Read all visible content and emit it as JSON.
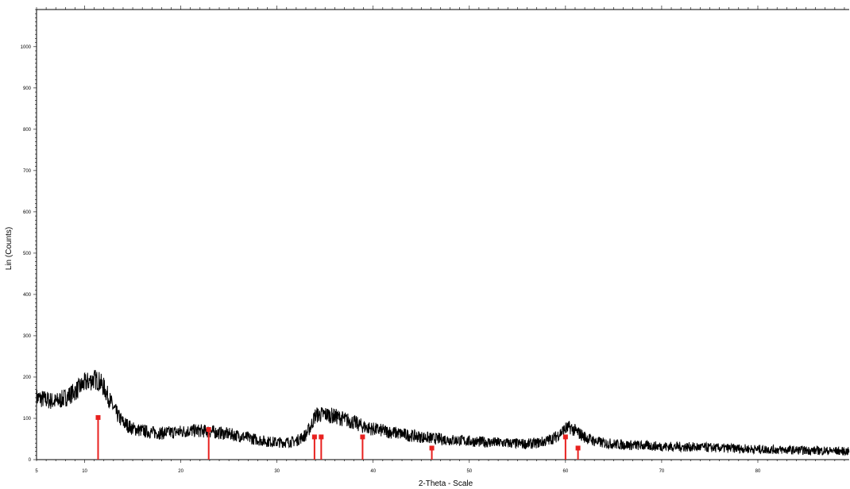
{
  "chart_data": {
    "type": "line",
    "title": "",
    "xlabel": "2-Theta - Scale",
    "ylabel": "Lin (Counts)",
    "xlim": [
      5,
      89.5
    ],
    "ylim": [
      0,
      1090
    ],
    "x_ticks": [
      5,
      10,
      20,
      30,
      40,
      50,
      60,
      70,
      80
    ],
    "y_ticks": [
      0,
      100,
      200,
      300,
      400,
      500,
      600,
      700,
      800,
      900,
      1000
    ],
    "grid": false,
    "legend": "none",
    "colors": {
      "pattern": "#000000",
      "reference": "#e8211f"
    },
    "series": [
      {
        "x": [
          5,
          6,
          7,
          8,
          9,
          10,
          10.5,
          11,
          11.5,
          12,
          12.5,
          13,
          13.5,
          14,
          15,
          16,
          17,
          18,
          19,
          20,
          21,
          22,
          23,
          24,
          25,
          26,
          27,
          28,
          29,
          30,
          31,
          32,
          33,
          33.5,
          34,
          35,
          36,
          37,
          38,
          39,
          40,
          42,
          44,
          46,
          48,
          50,
          52,
          54,
          56,
          57,
          58,
          59,
          59.5,
          60,
          60.5,
          61,
          62,
          63,
          64,
          66,
          68,
          70,
          72,
          74,
          76,
          78,
          80,
          82,
          84,
          86,
          88,
          89.5
        ],
        "values": [
          150,
          145,
          140,
          150,
          165,
          185,
          190,
          195,
          190,
          175,
          150,
          125,
          105,
          90,
          75,
          70,
          66,
          64,
          66,
          68,
          70,
          70,
          68,
          65,
          62,
          58,
          53,
          48,
          44,
          42,
          42,
          45,
          60,
          80,
          108,
          110,
          105,
          98,
          90,
          80,
          74,
          66,
          58,
          52,
          48,
          45,
          42,
          40,
          38,
          40,
          45,
          55,
          65,
          75,
          78,
          70,
          55,
          45,
          40,
          36,
          34,
          32,
          31,
          30,
          28,
          27,
          25,
          24,
          23,
          22,
          21,
          20
        ]
      }
    ],
    "reference_lines": [
      {
        "x": 11.4,
        "y": 102
      },
      {
        "x": 22.9,
        "y": 73
      },
      {
        "x": 33.9,
        "y": 55
      },
      {
        "x": 34.6,
        "y": 55
      },
      {
        "x": 38.9,
        "y": 55
      },
      {
        "x": 46.1,
        "y": 28
      },
      {
        "x": 60.0,
        "y": 55
      },
      {
        "x": 61.3,
        "y": 28
      }
    ]
  }
}
